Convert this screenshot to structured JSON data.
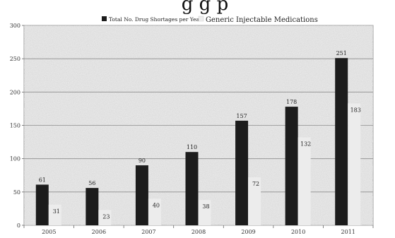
{
  "title_fragment": "g   g  p",
  "chart_data": {
    "type": "bar",
    "categories": [
      "2005",
      "2006",
      "2007",
      "2008",
      "2009",
      "2010",
      "2011"
    ],
    "series": [
      {
        "name": "Total No. Drug Shortages per Year",
        "values": [
          61,
          56,
          90,
          110,
          157,
          178,
          251
        ]
      },
      {
        "name": "Generic Injectable Medications",
        "values": [
          31,
          23,
          40,
          38,
          72,
          132,
          183
        ]
      }
    ],
    "ylim": [
      0,
      300
    ],
    "yticks": [
      0,
      50,
      100,
      150,
      200,
      250,
      300
    ],
    "grid": true,
    "legend_position": "top-center",
    "colors": {
      "series0": "#1c1c1c",
      "series1": "#ececec",
      "plot_bg": "#d9d9d9",
      "grid": "#8c8c8c"
    }
  }
}
